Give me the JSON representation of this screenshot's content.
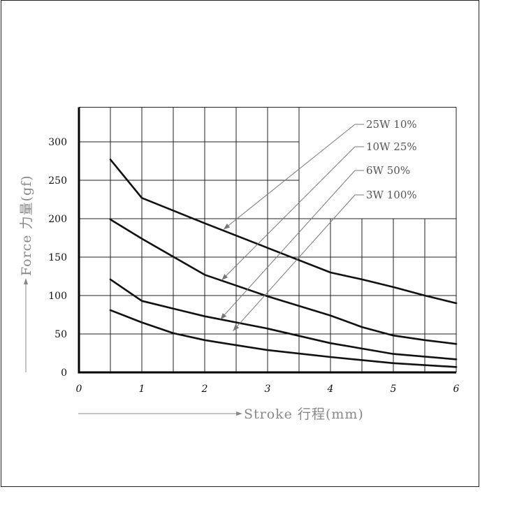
{
  "chart_data": {
    "type": "line",
    "xlabel": "Stroke 行程(mm)",
    "ylabel": "Force 力量(gf)",
    "xlim": [
      0,
      6
    ],
    "ylim": [
      0,
      345
    ],
    "x_ticks": [
      "0",
      "1",
      "2",
      "3",
      "4",
      "5",
      "6"
    ],
    "y_ticks": [
      "0",
      "50",
      "100",
      "150",
      "200",
      "250",
      "300"
    ],
    "grid": true,
    "series": [
      {
        "name": "25W 10%",
        "x": [
          0.5,
          1,
          2,
          3,
          4,
          4.5,
          5,
          5.5,
          6
        ],
        "y": [
          277,
          227,
          194,
          162,
          130,
          121,
          111,
          100,
          90
        ]
      },
      {
        "name": "10W 25%",
        "x": [
          0.5,
          1,
          2,
          3,
          4,
          4.5,
          5,
          5.5,
          6
        ],
        "y": [
          199,
          174,
          127,
          99,
          74,
          59,
          48,
          42,
          37
        ]
      },
      {
        "name": "6W 50%",
        "x": [
          0.5,
          1,
          2,
          3,
          4,
          5,
          6
        ],
        "y": [
          121,
          93,
          73,
          57,
          38,
          24,
          17
        ]
      },
      {
        "name": "3W 100%",
        "x": [
          0.5,
          1,
          1.5,
          2,
          2.3,
          3,
          4,
          5,
          6
        ],
        "y": [
          81,
          65,
          51,
          42,
          38,
          29,
          20,
          12,
          7
        ]
      }
    ]
  }
}
